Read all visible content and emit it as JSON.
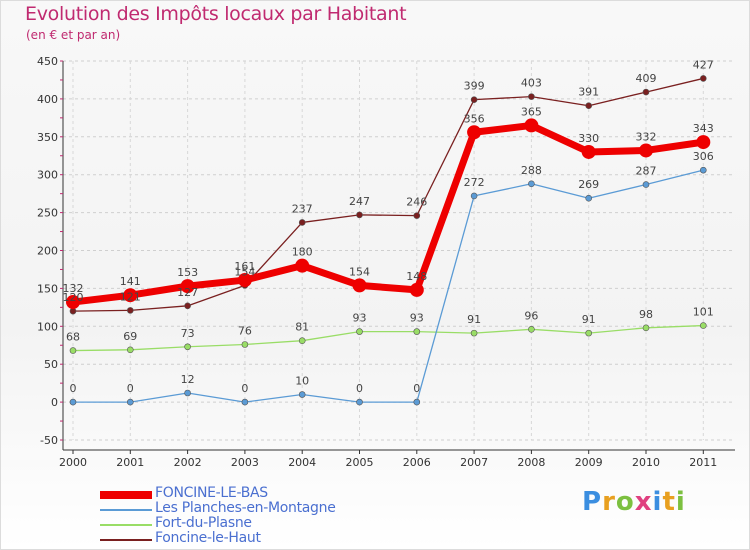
{
  "title": "Evolution des Impôts locaux par Habitant",
  "subtitle": "(en € et par an)",
  "logo_text": "Proxiti",
  "chart_data": {
    "type": "line",
    "title": "Evolution des Impôts locaux par Habitant",
    "subtitle": "(en € et par an)",
    "x": [
      "2000",
      "2001",
      "2002",
      "2003",
      "2004",
      "2005",
      "2006",
      "2007",
      "2008",
      "2009",
      "2010",
      "2011"
    ],
    "ylim": [
      -50,
      450
    ],
    "yticks": [
      -50,
      0,
      50,
      100,
      150,
      200,
      250,
      300,
      350,
      400,
      450
    ],
    "ytick_labels": [
      "-50",
      "0",
      "50",
      "100",
      "150",
      "200",
      "250",
      "300",
      "350",
      "400",
      "450"
    ],
    "grid": true,
    "legend_position": "bottom-left",
    "series": [
      {
        "name": "FONCINE-LE-BAS",
        "color": "#ee0000",
        "values": [
          132,
          141,
          153,
          161,
          180,
          154,
          148,
          356,
          365,
          330,
          332,
          343
        ]
      },
      {
        "name": "Les Planches-en-Montagne",
        "color": "#5b9bd5",
        "values": [
          0,
          0,
          12,
          0,
          10,
          0,
          0,
          272,
          288,
          269,
          287,
          306
        ]
      },
      {
        "name": "Fort-du-Plasne",
        "color": "#99dd66",
        "values": [
          68,
          69,
          73,
          76,
          81,
          93,
          93,
          91,
          96,
          91,
          98,
          101
        ]
      },
      {
        "name": "Foncine-le-Haut",
        "color": "#7a2020",
        "values": [
          120,
          121,
          127,
          154,
          237,
          247,
          246,
          399,
          403,
          391,
          409,
          427
        ]
      }
    ],
    "data_labels": [
      [
        "132",
        "141",
        "153",
        "161",
        "180",
        "154",
        "148",
        "356",
        "365",
        "330",
        "332",
        "343"
      ],
      [
        "0",
        "0",
        "12",
        "0",
        "10",
        "0",
        "0",
        "272",
        "288",
        "269",
        "287",
        "306"
      ],
      [
        "68",
        "69",
        "73",
        "76",
        "81",
        "93",
        "93",
        "91",
        "96",
        "91",
        "98",
        "101"
      ],
      [
        "120",
        "121",
        "127",
        "154",
        "237",
        "247",
        "246",
        "399",
        "403",
        "391",
        "409",
        "427"
      ]
    ]
  }
}
